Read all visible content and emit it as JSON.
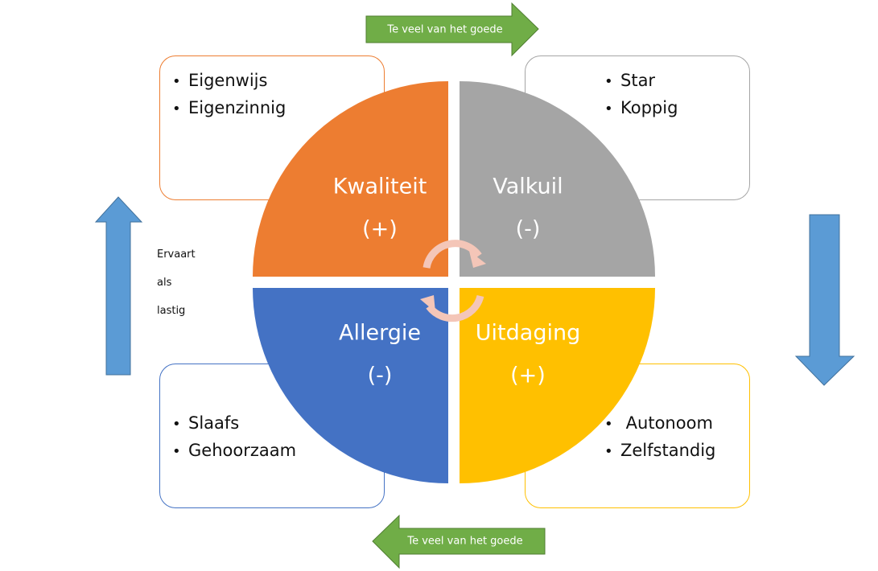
{
  "top_arrow": {
    "label": "Te veel van het goede"
  },
  "bottom_arrow": {
    "label": "Te veel van het goede"
  },
  "side_text": [
    "Ervaart",
    "als",
    "lastig"
  ],
  "quadrants": {
    "kwaliteit": {
      "title": "Kwaliteit",
      "sign": "(+)",
      "color": "#ED7D31"
    },
    "valkuil": {
      "title": "Valkuil",
      "sign": "(-)",
      "color": "#A5A5A5"
    },
    "allergie": {
      "title": "Allergie",
      "sign": "(-)",
      "color": "#4472C4"
    },
    "uitdaging": {
      "title": "Uitdaging",
      "sign": "(+)",
      "color": "#FFC000"
    }
  },
  "boxes": {
    "kwaliteit": {
      "items": [
        "Eigenwijs",
        "Eigenzinnig"
      ]
    },
    "valkuil": {
      "items": [
        "Star",
        "Koppig"
      ]
    },
    "allergie": {
      "items": [
        "Slaafs",
        "Gehoorzaam"
      ]
    },
    "uitdaging": {
      "items": [
        " Autonoom",
        "Zelfstandig"
      ]
    }
  },
  "colors": {
    "arrow_green": "#70AD47",
    "arrow_blue": "#5B9BD5",
    "cycle_arrow": "#F4C6B8"
  }
}
